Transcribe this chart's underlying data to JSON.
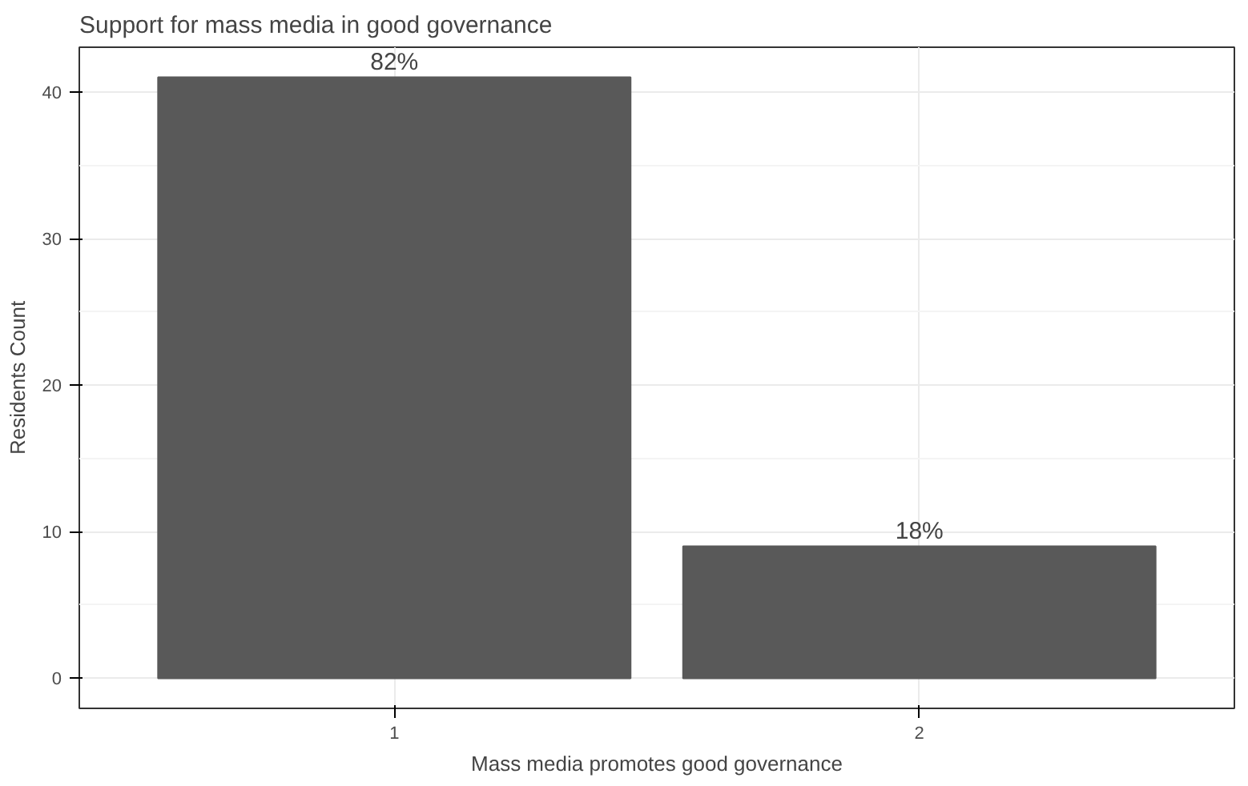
{
  "chart_data": {
    "type": "bar",
    "title": "Support for mass media in good governance",
    "xlabel": "Mass media promotes good governance",
    "ylabel": "Residents Count",
    "categories": [
      "1",
      "2"
    ],
    "values": [
      41,
      9
    ],
    "color": "#595959",
    "annotations": [
      {
        "text": "82%",
        "x": "1",
        "y": 41
      },
      {
        "text": "18%",
        "x": "2",
        "y": 9
      }
    ],
    "ylim": [
      -2.05,
      43.05
    ],
    "yticks": [
      0,
      10,
      20,
      30,
      40
    ],
    "grid": true
  }
}
